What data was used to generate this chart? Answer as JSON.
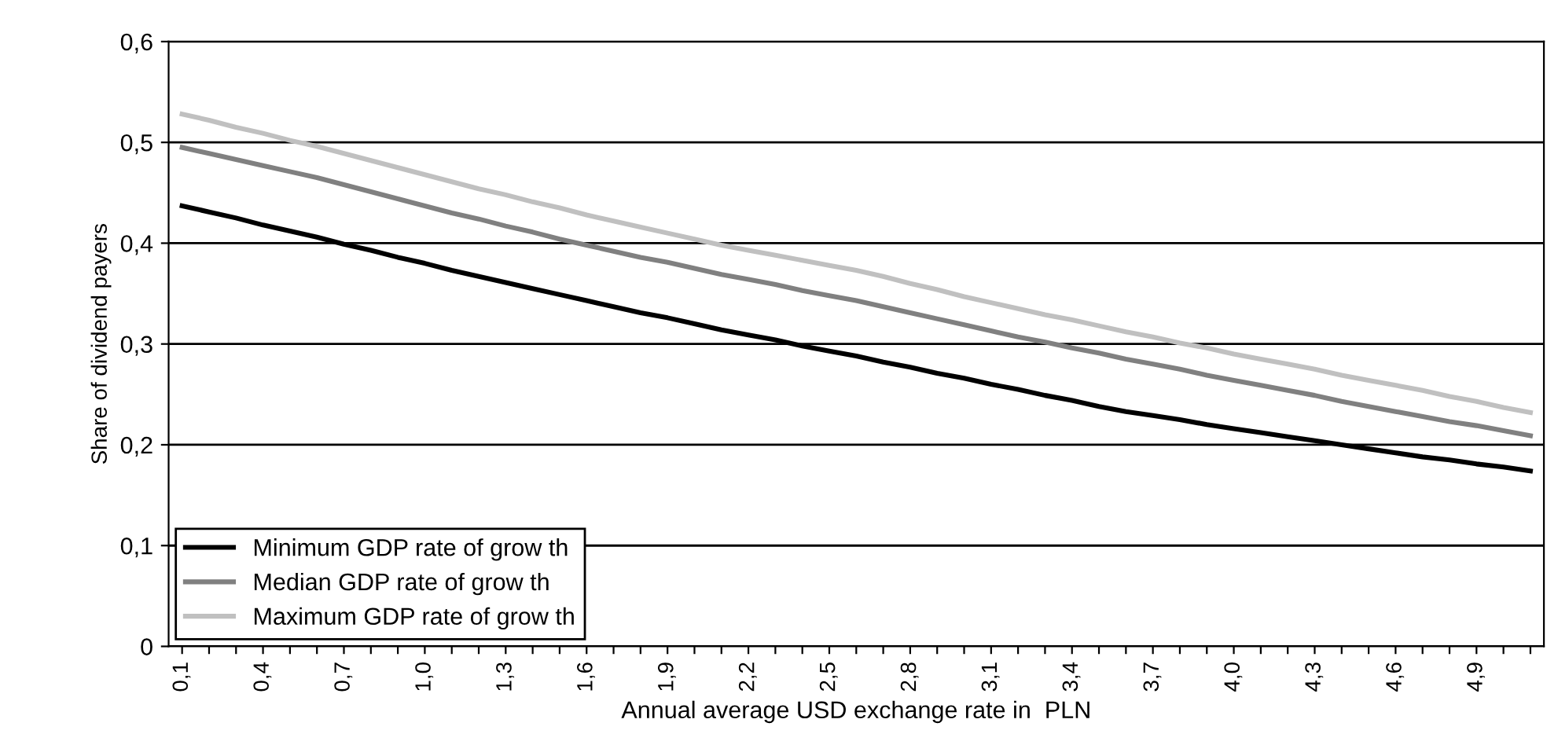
{
  "chart_data": {
    "type": "line",
    "xlabel": "Annual average USD exchange rate in  PLN",
    "ylabel": "Share of dividend payers",
    "categories": [
      "0,1",
      null,
      null,
      "0,4",
      null,
      null,
      "0,7",
      null,
      null,
      "1,0",
      null,
      null,
      "1,3",
      null,
      null,
      "1,6",
      null,
      null,
      "1,9",
      null,
      null,
      "2,2",
      null,
      null,
      "2,5",
      null,
      null,
      "2,8",
      null,
      null,
      "3,1",
      null,
      null,
      "3,4",
      null,
      null,
      "3,7",
      null,
      null,
      "4,0",
      null,
      null,
      "4,3",
      null,
      null,
      "4,6",
      null,
      null,
      "4,9",
      null,
      null
    ],
    "series": [
      {
        "name": "Minimum GDP rate of grow th",
        "color": "#000000",
        "values": [
          0.437,
          0.431,
          0.425,
          0.418,
          0.412,
          0.406,
          0.399,
          0.393,
          0.386,
          0.38,
          0.373,
          0.367,
          0.361,
          0.355,
          0.349,
          0.343,
          0.337,
          0.331,
          0.326,
          0.32,
          0.314,
          0.309,
          0.304,
          0.298,
          0.293,
          0.288,
          0.282,
          0.277,
          0.271,
          0.266,
          0.26,
          0.255,
          0.249,
          0.244,
          0.238,
          0.233,
          0.229,
          0.225,
          0.22,
          0.216,
          0.212,
          0.208,
          0.204,
          0.2,
          0.196,
          0.192,
          0.188,
          0.185,
          0.181,
          0.178,
          0.174
        ]
      },
      {
        "name": "Median GDP rate of grow th",
        "color": "#808080",
        "values": [
          0.495,
          0.489,
          0.483,
          0.477,
          0.471,
          0.465,
          0.458,
          0.451,
          0.444,
          0.437,
          0.43,
          0.424,
          0.417,
          0.411,
          0.404,
          0.398,
          0.392,
          0.386,
          0.381,
          0.375,
          0.369,
          0.364,
          0.359,
          0.353,
          0.348,
          0.343,
          0.337,
          0.331,
          0.325,
          0.319,
          0.313,
          0.307,
          0.302,
          0.296,
          0.291,
          0.285,
          0.28,
          0.275,
          0.269,
          0.264,
          0.259,
          0.254,
          0.249,
          0.243,
          0.238,
          0.233,
          0.228,
          0.223,
          0.219,
          0.214,
          0.209
        ]
      },
      {
        "name": "Maximum GDP rate of grow th",
        "color": "#c0c0c0",
        "values": [
          0.528,
          0.522,
          0.515,
          0.509,
          0.502,
          0.496,
          0.489,
          0.482,
          0.475,
          0.468,
          0.461,
          0.454,
          0.448,
          0.441,
          0.435,
          0.428,
          0.422,
          0.416,
          0.41,
          0.404,
          0.398,
          0.393,
          0.388,
          0.383,
          0.378,
          0.373,
          0.367,
          0.36,
          0.354,
          0.347,
          0.341,
          0.335,
          0.329,
          0.324,
          0.318,
          0.312,
          0.307,
          0.301,
          0.296,
          0.29,
          0.285,
          0.28,
          0.275,
          0.269,
          0.264,
          0.259,
          0.254,
          0.248,
          0.243,
          0.237,
          0.232
        ]
      }
    ],
    "ylim": [
      0,
      0.6
    ],
    "yticks": [
      0,
      {
        "value": 0.1,
        "label": "0,1"
      },
      {
        "value": 0.2,
        "label": "0,2"
      },
      {
        "value": 0.3,
        "label": "0,3"
      },
      {
        "value": 0.4,
        "label": "0,4"
      },
      {
        "value": 0.5,
        "label": "0,5"
      },
      {
        "value": 0.6,
        "label": "0,6"
      }
    ],
    "grid": "y",
    "legend": "bottom left",
    "marker": "none",
    "line_style": "solid"
  }
}
